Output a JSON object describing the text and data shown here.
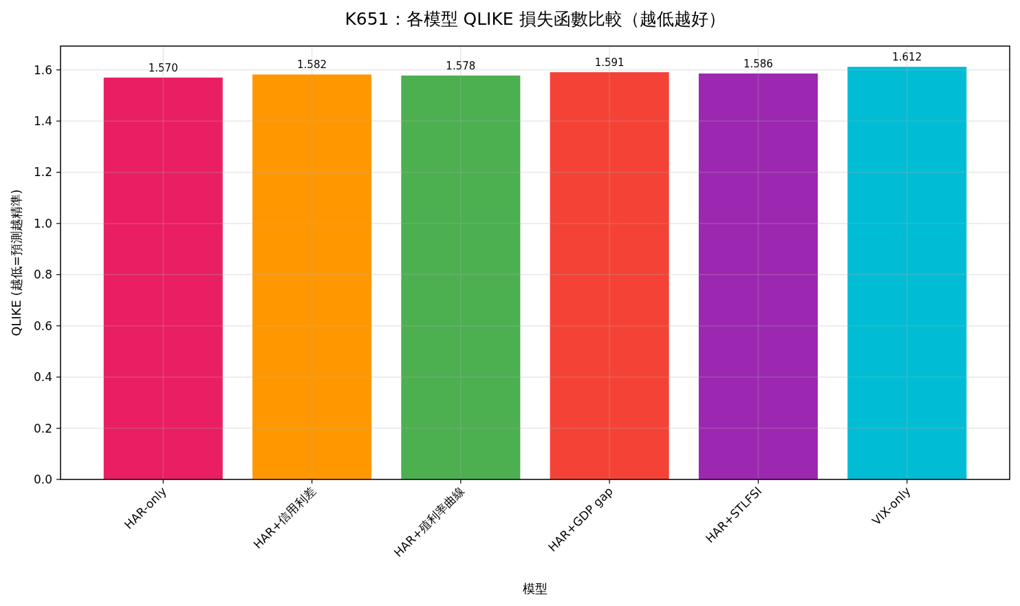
{
  "chart_data": {
    "type": "bar",
    "title": "K651：各模型 QLIKE 損失函數比較（越低越好）",
    "xlabel": "模型",
    "ylabel": "QLIKE (越低=預測越精準)",
    "categories": [
      "HAR-only",
      "HAR+信用利差",
      "HAR+殖利率曲線",
      "HAR+GDP gap",
      "HAR+STLFSI",
      "VIX-only"
    ],
    "values": [
      1.57,
      1.582,
      1.578,
      1.591,
      1.586,
      1.612
    ],
    "colors": [
      "#e91e63",
      "#ff9800",
      "#4caf50",
      "#f44336",
      "#9c27b0",
      "#00bcd4"
    ],
    "ylim": [
      0,
      1.693
    ],
    "yticks": [
      {
        "value": 0,
        "label": "0.0"
      },
      {
        "value": 0.2,
        "label": "0.2"
      },
      {
        "value": 0.4,
        "label": "0.4"
      },
      {
        "value": 0.6,
        "label": "0.6"
      },
      {
        "value": 0.8,
        "label": "0.8"
      },
      {
        "value": 1.0,
        "label": "1.0"
      },
      {
        "value": 1.2,
        "label": "1.2"
      },
      {
        "value": 1.4,
        "label": "1.4"
      },
      {
        "value": 1.6,
        "label": "1.6"
      }
    ],
    "value_labels": [
      "1.570",
      "1.582",
      "1.578",
      "1.591",
      "1.586",
      "1.612"
    ],
    "grid": true
  }
}
